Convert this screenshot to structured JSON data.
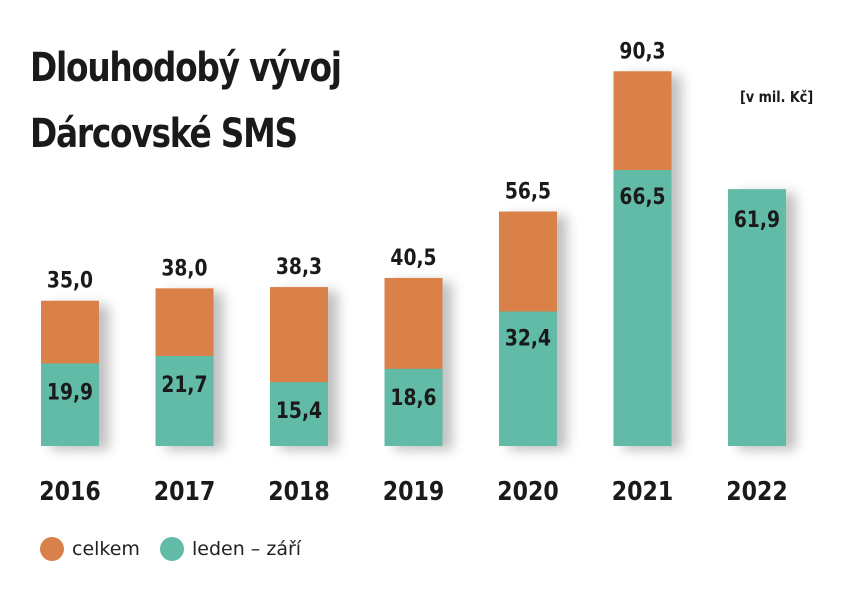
{
  "title_line1": "Dlouhodobý vývoj",
  "title_line2": "Dárcovské SMS",
  "unit_note": "[v mil. Kč]",
  "colors": {
    "total": "#D9814A",
    "partial": "#62BBA7",
    "text": "#1a1a1a"
  },
  "legend": {
    "total_label": "celkem",
    "partial_label": "leden – září"
  },
  "chart_data": {
    "type": "bar",
    "title": "Dlouhodobý vývoj Dárcovské SMS",
    "unit": "[v mil. Kč]",
    "categories": [
      "2016",
      "2017",
      "2018",
      "2019",
      "2020",
      "2021",
      "2022"
    ],
    "series": [
      {
        "name": "celkem",
        "values": [
          35.0,
          38.0,
          38.3,
          40.5,
          56.5,
          90.3,
          null
        ],
        "labels": [
          "35,0",
          "38,0",
          "38,3",
          "40,5",
          "56,5",
          "90,3",
          ""
        ]
      },
      {
        "name": "leden – září",
        "values": [
          19.9,
          21.7,
          15.4,
          18.6,
          32.4,
          66.5,
          61.9
        ],
        "labels": [
          "19,9",
          "21,7",
          "15,4",
          "18,6",
          "32,4",
          "66,5",
          "61,9"
        ]
      }
    ],
    "overlay": true,
    "legend_position": "bottom-left"
  }
}
